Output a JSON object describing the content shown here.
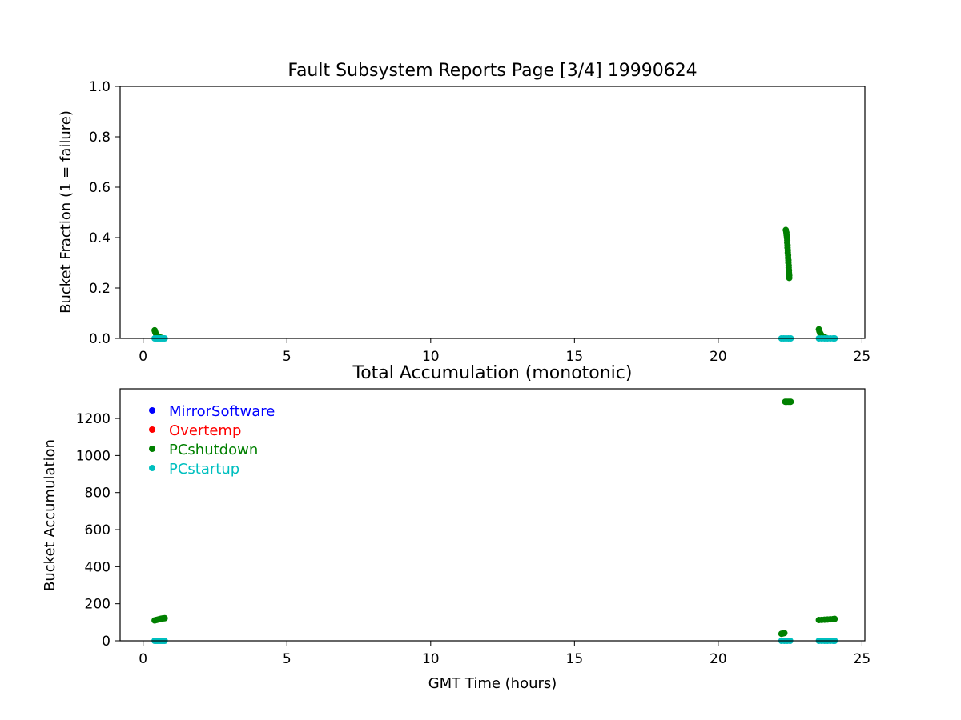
{
  "chart_data": [
    {
      "type": "scatter",
      "title": "Fault Subsystem Reports Page [3/4] 19990624",
      "xlabel": "",
      "ylabel": "Bucket Fraction (1 = failure)",
      "xlim": [
        -0.8,
        25.1
      ],
      "ylim": [
        0,
        1.0
      ],
      "xticks": [
        0,
        5,
        10,
        15,
        20,
        25
      ],
      "yticks": [
        0.0,
        0.2,
        0.4,
        0.6,
        0.8,
        1.0
      ],
      "ytick_labels": [
        "0.0",
        "0.2",
        "0.4",
        "0.6",
        "0.8",
        "1.0"
      ],
      "grid": false,
      "series": [
        {
          "name": "PCshutdown",
          "color": "#008000",
          "points": [
            [
              0.4,
              0.032
            ],
            [
              0.42,
              0.025
            ],
            [
              0.45,
              0.018
            ],
            [
              0.48,
              0.012
            ],
            [
              0.52,
              0.008
            ],
            [
              0.56,
              0.005
            ],
            [
              0.6,
              0.003
            ],
            [
              0.65,
              0.002
            ],
            [
              22.35,
              0.43
            ],
            [
              22.37,
              0.42
            ],
            [
              22.38,
              0.41
            ],
            [
              22.39,
              0.4
            ],
            [
              22.4,
              0.39
            ],
            [
              22.4,
              0.38
            ],
            [
              22.41,
              0.37
            ],
            [
              22.41,
              0.36
            ],
            [
              22.42,
              0.35
            ],
            [
              22.42,
              0.34
            ],
            [
              22.43,
              0.33
            ],
            [
              22.43,
              0.32
            ],
            [
              22.44,
              0.31
            ],
            [
              22.44,
              0.3
            ],
            [
              22.45,
              0.29
            ],
            [
              22.45,
              0.28
            ],
            [
              22.46,
              0.27
            ],
            [
              22.46,
              0.26
            ],
            [
              22.47,
              0.25
            ],
            [
              22.47,
              0.24
            ],
            [
              23.5,
              0.036
            ],
            [
              23.52,
              0.028
            ],
            [
              23.55,
              0.02
            ],
            [
              23.58,
              0.014
            ],
            [
              23.62,
              0.009
            ],
            [
              23.66,
              0.006
            ],
            [
              23.7,
              0.004
            ],
            [
              23.75,
              0.002
            ]
          ]
        },
        {
          "name": "PCstartup",
          "color": "#00bfbf",
          "points": [
            [
              0.4,
              0.0
            ],
            [
              0.45,
              0.0
            ],
            [
              0.5,
              0.0
            ],
            [
              0.55,
              0.0
            ],
            [
              0.6,
              0.0
            ],
            [
              0.65,
              0.0
            ],
            [
              0.7,
              0.0
            ],
            [
              0.75,
              0.0
            ],
            [
              22.2,
              0.0
            ],
            [
              22.28,
              0.0
            ],
            [
              22.36,
              0.0
            ],
            [
              22.44,
              0.0
            ],
            [
              22.52,
              0.0
            ],
            [
              23.5,
              0.0
            ],
            [
              23.6,
              0.0
            ],
            [
              23.7,
              0.0
            ],
            [
              23.8,
              0.0
            ],
            [
              23.9,
              0.0
            ],
            [
              24.0,
              0.0
            ],
            [
              24.05,
              0.0
            ]
          ]
        }
      ]
    },
    {
      "type": "scatter",
      "title": "Total Accumulation (monotonic)",
      "xlabel": "GMT Time (hours)",
      "ylabel": "Bucket Accumulation",
      "xlim": [
        -0.8,
        25.1
      ],
      "ylim": [
        0,
        1360
      ],
      "xticks": [
        0,
        5,
        10,
        15,
        20,
        25
      ],
      "yticks": [
        0,
        200,
        400,
        600,
        800,
        1000,
        1200
      ],
      "grid": false,
      "legend_position": "upper-left",
      "legend": [
        {
          "name": "MirrorSoftware",
          "color": "#0000ff"
        },
        {
          "name": "Overtemp",
          "color": "#ff0000"
        },
        {
          "name": "PCshutdown",
          "color": "#008000"
        },
        {
          "name": "PCstartup",
          "color": "#00bfbf"
        }
      ],
      "series": [
        {
          "name": "PCshutdown",
          "color": "#008000",
          "points": [
            [
              0.4,
              110
            ],
            [
              0.45,
              112
            ],
            [
              0.5,
              114
            ],
            [
              0.55,
              116
            ],
            [
              0.6,
              118
            ],
            [
              0.65,
              120
            ],
            [
              0.7,
              121
            ],
            [
              0.75,
              122
            ],
            [
              22.2,
              38
            ],
            [
              22.25,
              40
            ],
            [
              22.3,
              42
            ],
            [
              22.33,
              1290
            ],
            [
              22.38,
              1290
            ],
            [
              22.43,
              1290
            ],
            [
              22.48,
              1290
            ],
            [
              22.52,
              1290
            ],
            [
              23.5,
              112
            ],
            [
              23.6,
              113
            ],
            [
              23.7,
              114
            ],
            [
              23.8,
              115
            ],
            [
              23.9,
              116
            ],
            [
              24.0,
              117
            ],
            [
              24.05,
              118
            ]
          ]
        },
        {
          "name": "PCstartup",
          "color": "#00bfbf",
          "points": [
            [
              0.4,
              0
            ],
            [
              0.45,
              0
            ],
            [
              0.5,
              0
            ],
            [
              0.55,
              0
            ],
            [
              0.6,
              0
            ],
            [
              0.65,
              0
            ],
            [
              0.7,
              0
            ],
            [
              0.75,
              0
            ],
            [
              22.2,
              0
            ],
            [
              22.3,
              0
            ],
            [
              22.4,
              0
            ],
            [
              22.5,
              0
            ],
            [
              23.5,
              0
            ],
            [
              23.6,
              0
            ],
            [
              23.7,
              0
            ],
            [
              23.8,
              0
            ],
            [
              23.9,
              0
            ],
            [
              24.0,
              0
            ],
            [
              24.05,
              0
            ]
          ]
        }
      ]
    }
  ]
}
